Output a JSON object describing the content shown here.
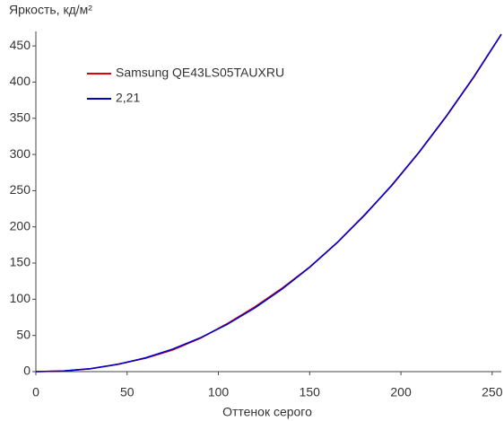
{
  "chart_data": {
    "type": "line",
    "ylabel": "Яркость, кд/м²",
    "xlabel": "Оттенок серого",
    "x": [
      0,
      15,
      30,
      45,
      60,
      75,
      90,
      105,
      120,
      135,
      150,
      165,
      180,
      195,
      210,
      225,
      240,
      255
    ],
    "series": [
      {
        "name": "Samsung QE43LS05TAUXRU",
        "color": "#e00000",
        "values": [
          0,
          0.9,
          4.0,
          10.3,
          18.5,
          30.0,
          46.0,
          66.5,
          89.5,
          115.5,
          144.5,
          178,
          216.5,
          257,
          303,
          353,
          407,
          466
        ]
      },
      {
        "name": "2,21",
        "color": "#0000c8",
        "values": [
          0,
          0.89,
          4.1,
          10.1,
          19.0,
          31.2,
          46.6,
          65.6,
          88.1,
          114.3,
          144.2,
          178.1,
          215.9,
          257.6,
          303.4,
          353.4,
          407.6,
          466
        ]
      }
    ],
    "xlim": [
      0,
      255
    ],
    "ylim": [
      0,
      470
    ],
    "xticks": [
      0,
      50,
      100,
      150,
      200,
      250
    ],
    "yticks": [
      0,
      50,
      100,
      150,
      200,
      250,
      300,
      350,
      400,
      450
    ],
    "legend": "upper-left"
  }
}
